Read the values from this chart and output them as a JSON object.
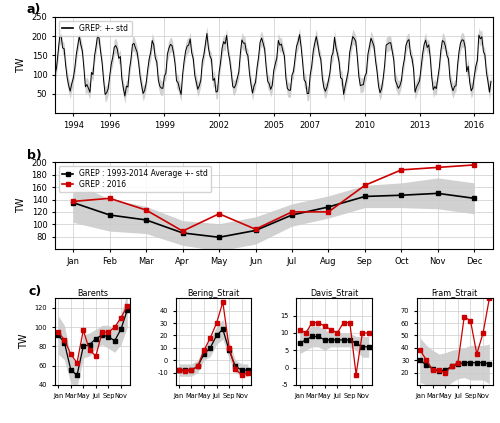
{
  "panel_a": {
    "ylabel": "TW",
    "legend": "GREP: +- std",
    "xticks": [
      1994,
      1996,
      1999,
      2002,
      2005,
      2007,
      2010,
      2013,
      2016
    ],
    "xlim": [
      1993.0,
      2017.0
    ],
    "ylim": [
      0,
      250
    ],
    "yticks": [
      50,
      100,
      150,
      200,
      250
    ]
  },
  "panel_b": {
    "ylabel": "TW",
    "legend_black": "GREP : 1993-2014 Average +- std",
    "legend_red": "GREP : 2016",
    "months": [
      "Jan",
      "Feb",
      "Mar",
      "Apr",
      "May",
      "Jun",
      "Jul",
      "Aug",
      "Sep",
      "Oct",
      "Nov",
      "Dec"
    ],
    "ylim": [
      60,
      200
    ],
    "yticks": [
      80,
      100,
      120,
      140,
      160,
      180,
      200
    ],
    "mean": [
      135,
      115,
      107,
      86,
      79,
      90,
      115,
      128,
      145,
      147,
      150,
      142
    ],
    "std": [
      32,
      26,
      22,
      20,
      22,
      22,
      18,
      18,
      18,
      20,
      25,
      25
    ],
    "red_2016": [
      137,
      142,
      123,
      89,
      117,
      92,
      120,
      120,
      163,
      188,
      192,
      196
    ]
  },
  "panel_c": {
    "months_short": [
      "Jan",
      "Mar",
      "May",
      "Jul",
      "Sep",
      "Nov"
    ],
    "barents": {
      "title": "Barents",
      "ylabel": "TW",
      "ylim": [
        40,
        130
      ],
      "yticks": [
        40,
        60,
        80,
        100,
        120
      ],
      "mean": [
        92,
        84,
        56,
        50,
        80,
        82,
        88,
        92,
        90,
        86,
        98,
        118
      ],
      "std": [
        20,
        18,
        14,
        12,
        12,
        12,
        10,
        10,
        12,
        12,
        16,
        18
      ],
      "red": [
        95,
        87,
        72,
        63,
        97,
        76,
        70,
        95,
        95,
        100,
        110,
        122
      ]
    },
    "bering": {
      "title": "Bering_Strait",
      "ylim": [
        -20,
        50
      ],
      "yticks": [
        -10,
        0,
        10,
        20,
        30,
        40
      ],
      "mean": [
        -8,
        -8,
        -8,
        -5,
        5,
        10,
        20,
        25,
        8,
        -5,
        -8,
        -8
      ],
      "std": [
        5,
        5,
        5,
        5,
        5,
        7,
        7,
        8,
        7,
        5,
        5,
        5
      ],
      "red": [
        -8,
        -9,
        -8,
        -5,
        8,
        18,
        30,
        47,
        10,
        -7,
        -12,
        -10
      ]
    },
    "davis": {
      "title": "Davis_Strait",
      "ylim": [
        -5,
        20
      ],
      "yticks": [
        -5,
        0,
        5,
        10,
        15
      ],
      "mean": [
        7,
        8,
        9,
        9,
        8,
        8,
        8,
        8,
        8,
        7,
        6,
        6
      ],
      "std": [
        3,
        3,
        3,
        3,
        3,
        2,
        2,
        2,
        2,
        2,
        3,
        3
      ],
      "red": [
        11,
        10,
        13,
        13,
        12,
        11,
        10,
        13,
        13,
        -2,
        10,
        10
      ]
    },
    "fram": {
      "title": "Fram_Strait",
      "ylim": [
        10,
        80
      ],
      "yticks": [
        20,
        30,
        40,
        50,
        60,
        70
      ],
      "mean": [
        30,
        26,
        23,
        21,
        22,
        25,
        27,
        28,
        28,
        28,
        28,
        27
      ],
      "std": [
        18,
        16,
        15,
        14,
        14,
        13,
        12,
        12,
        14,
        14,
        14,
        16
      ],
      "red": [
        38,
        30,
        22,
        22,
        20,
        25,
        28,
        65,
        62,
        35,
        52,
        80
      ]
    }
  },
  "background_color": "#ffffff",
  "grid_color": "#cccccc",
  "shade_color": "#999999",
  "black_line_color": "#000000",
  "red_line_color": "#cc0000"
}
